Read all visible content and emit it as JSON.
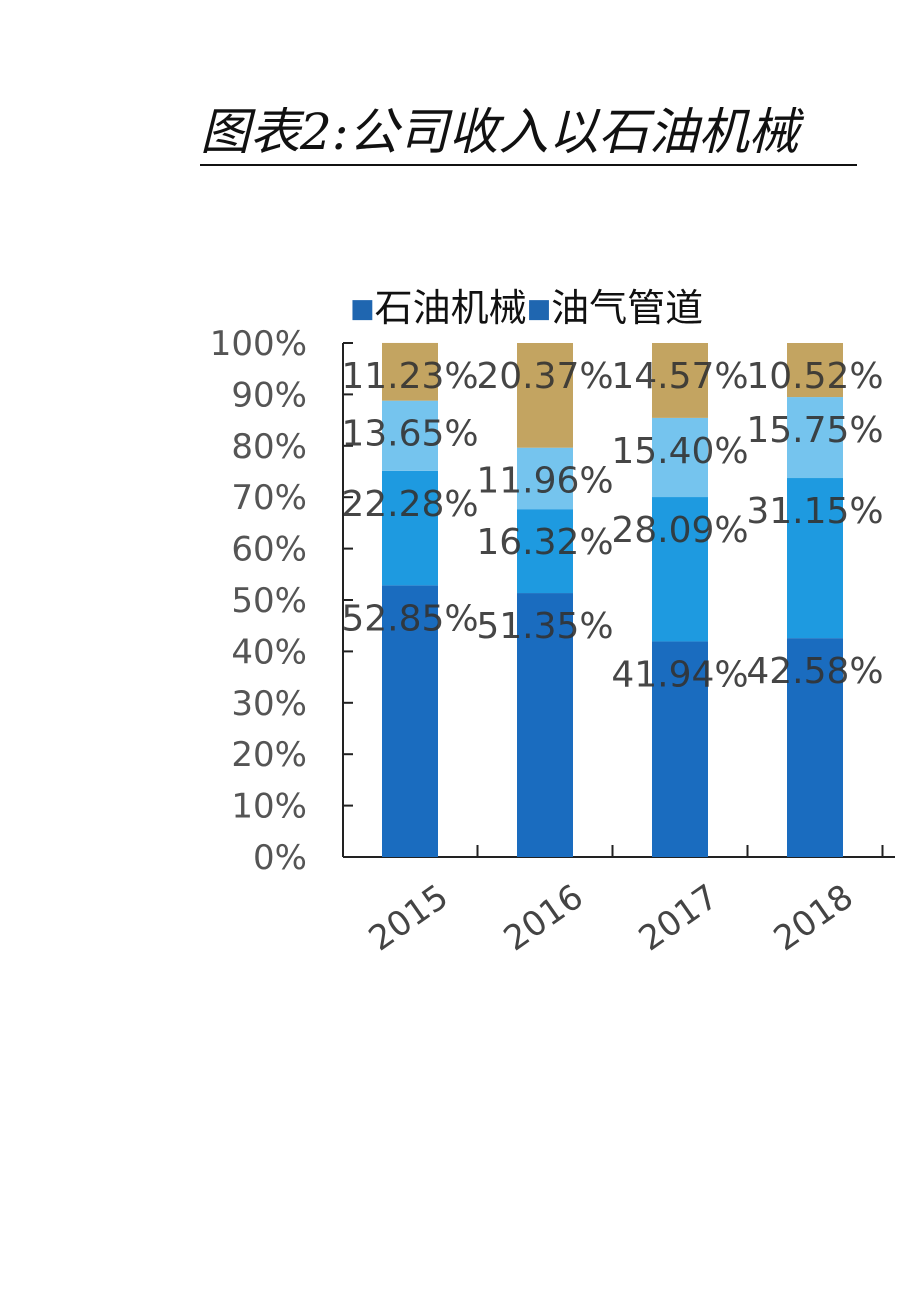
{
  "header": {
    "title": "图表2:公司收入以石油机械"
  },
  "chart_data": {
    "type": "bar",
    "stacked": true,
    "categories": [
      "2015",
      "2016",
      "2017",
      "2018"
    ],
    "series": [
      {
        "name": "石油机械",
        "values": [
          52.85,
          51.35,
          41.94,
          42.58
        ],
        "color": "#1a6cbf",
        "labels": [
          "52.85%",
          "51.35%",
          "41.94%",
          "42.58%"
        ]
      },
      {
        "name": "油气管道",
        "values": [
          22.28,
          16.32,
          28.09,
          31.15
        ],
        "color": "#1e9ae0",
        "labels": [
          "22.28%",
          "16.32%",
          "28.09%",
          "31.15%"
        ]
      },
      {
        "name": "",
        "values": [
          13.65,
          11.96,
          15.4,
          15.75
        ],
        "color": "#75c4ee",
        "labels": [
          "13.65%",
          "11.96%",
          "15.40%",
          "15.75%"
        ]
      },
      {
        "name": "",
        "values": [
          11.23,
          20.37,
          14.57,
          10.52
        ],
        "color": "#c3a461",
        "labels": [
          "11.23%",
          "20.37%",
          "14.57%",
          "10.52%"
        ]
      }
    ],
    "y_ticks": [
      "0%",
      "10%",
      "20%",
      "30%",
      "40%",
      "50%",
      "60%",
      "70%",
      "80%",
      "90%",
      "100%"
    ],
    "ylim": [
      0,
      100
    ],
    "legend": {
      "position": "top",
      "entries": [
        "石油机械",
        "油气管道"
      ]
    },
    "grid": false
  }
}
